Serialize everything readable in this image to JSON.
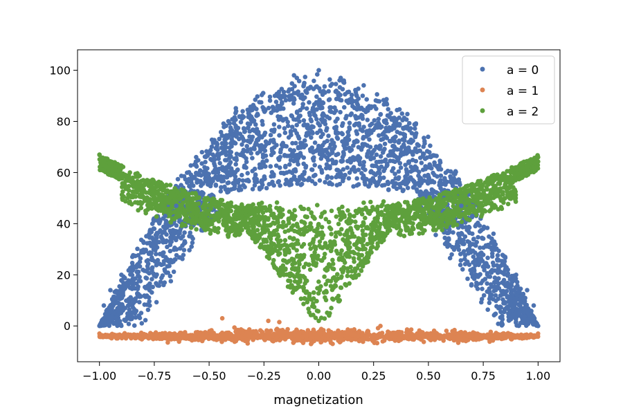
{
  "chart_data": {
    "type": "scatter",
    "title": "",
    "xlabel": "magnetization",
    "ylabel": "",
    "xlim": [
      -1.1,
      1.1
    ],
    "ylim": [
      -14,
      108
    ],
    "x_ticks": [
      -1.0,
      -0.75,
      -0.5,
      -0.25,
      0.0,
      0.25,
      0.5,
      0.75,
      1.0
    ],
    "x_tick_labels": [
      "−1.00",
      "−0.75",
      "−0.50",
      "−0.25",
      "0.00",
      "0.25",
      "0.50",
      "0.75",
      "1.00"
    ],
    "y_ticks": [
      0,
      20,
      40,
      60,
      80,
      100
    ],
    "y_tick_labels": [
      "0",
      "20",
      "40",
      "60",
      "80",
      "100"
    ],
    "grid": false,
    "legend_position": "top-right",
    "series": [
      {
        "name": "a = 0",
        "color": "#4c72b0",
        "shape": "dense cloud: peak ~100 at m = 0 falling to ~0 at m = ±1; inner core ~60 at m = 0",
        "points": [
          [
            -1.0,
            0
          ],
          [
            -0.98,
            8
          ],
          [
            -0.95,
            14
          ],
          [
            -0.9,
            20
          ],
          [
            -0.85,
            27
          ],
          [
            -0.8,
            33
          ],
          [
            -0.75,
            38
          ],
          [
            -0.7,
            43
          ],
          [
            -0.65,
            47
          ],
          [
            -0.6,
            50
          ],
          [
            -0.5,
            58
          ],
          [
            -0.4,
            68
          ],
          [
            -0.35,
            74
          ],
          [
            -0.3,
            80
          ],
          [
            -0.2,
            90
          ],
          [
            -0.1,
            97
          ],
          [
            0.0,
            100
          ],
          [
            0.1,
            97
          ],
          [
            0.2,
            90
          ],
          [
            0.3,
            80
          ],
          [
            0.35,
            74
          ],
          [
            0.4,
            68
          ],
          [
            0.5,
            58
          ],
          [
            0.6,
            50
          ],
          [
            0.65,
            47
          ],
          [
            0.7,
            43
          ],
          [
            0.75,
            38
          ],
          [
            0.8,
            33
          ],
          [
            0.85,
            27
          ],
          [
            0.9,
            20
          ],
          [
            0.95,
            14
          ],
          [
            0.98,
            8
          ],
          [
            1.0,
            0
          ]
        ]
      },
      {
        "name": "a = 1",
        "color": "#dd8452",
        "shape": "flat band from m = -1 to m = 1 at ~ -3 to -5",
        "points": [
          [
            -1.0,
            -3
          ],
          [
            -0.75,
            -4
          ],
          [
            -0.5,
            -4.5
          ],
          [
            -0.25,
            -5
          ],
          [
            0.0,
            -5
          ],
          [
            0.25,
            -5
          ],
          [
            0.5,
            -4.5
          ],
          [
            0.75,
            -4
          ],
          [
            1.0,
            -3
          ]
        ]
      },
      {
        "name": "a = 2",
        "color": "#5ea03c",
        "shape": "V / funnel: ~67 at m = ±1, ~45 near m = ±0.3, dropping to ~0 at m = 0",
        "points": [
          [
            -1.0,
            67
          ],
          [
            -0.9,
            62
          ],
          [
            -0.8,
            57
          ],
          [
            -0.7,
            53
          ],
          [
            -0.6,
            50
          ],
          [
            -0.5,
            47
          ],
          [
            -0.4,
            45
          ],
          [
            -0.3,
            42
          ],
          [
            -0.2,
            30
          ],
          [
            -0.1,
            15
          ],
          [
            0.0,
            2
          ],
          [
            0.1,
            15
          ],
          [
            0.2,
            30
          ],
          [
            0.3,
            42
          ],
          [
            0.4,
            45
          ],
          [
            0.5,
            47
          ],
          [
            0.6,
            50
          ],
          [
            0.7,
            53
          ],
          [
            0.8,
            57
          ],
          [
            0.9,
            62
          ],
          [
            1.0,
            66
          ]
        ]
      }
    ]
  }
}
